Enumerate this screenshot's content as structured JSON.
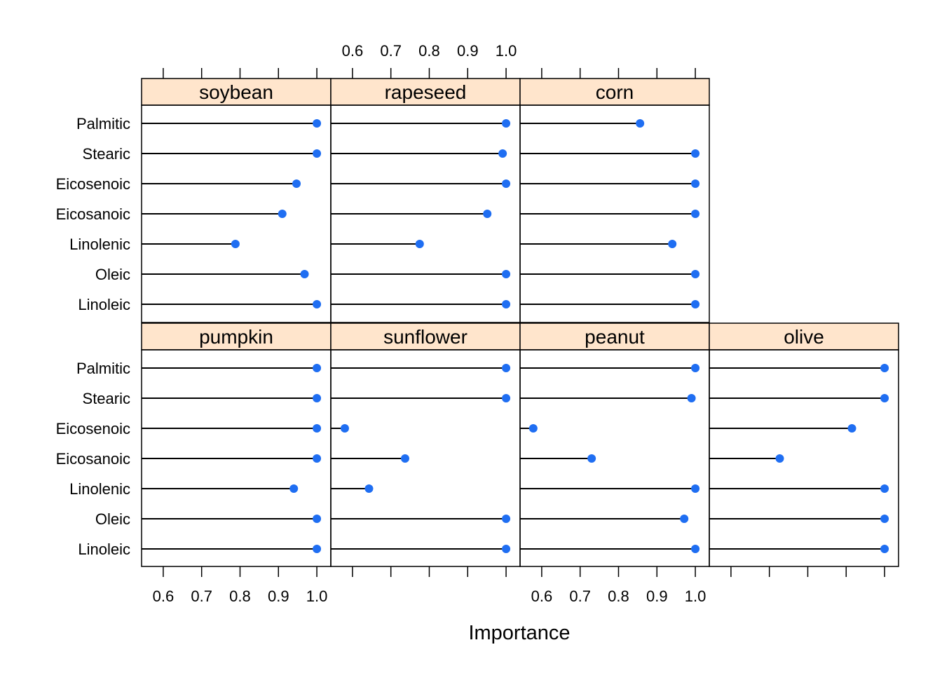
{
  "chart_data": {
    "type": "dotplot",
    "xlabel": "Importance",
    "xlim": [
      0.55,
      1.03
    ],
    "xticks": [
      0.6,
      0.7,
      0.8,
      0.9,
      1.0
    ],
    "xtick_labels": [
      "0.6",
      "0.7",
      "0.8",
      "0.9",
      "1.0"
    ],
    "grid": false,
    "layout": "4 columns x 2 rows",
    "strip_color": "#FFE5CC",
    "point_color": "#1F6EF2",
    "categories": [
      "Palmitic",
      "Stearic",
      "Eicosenoic",
      "Eicosanoic",
      "Linolenic",
      "Oleic",
      "Linoleic"
    ],
    "panels": [
      {
        "name": "soybean",
        "values": [
          1.0,
          1.0,
          0.947,
          0.91,
          0.788,
          0.968,
          1.0
        ]
      },
      {
        "name": "rapeseed",
        "values": [
          1.0,
          0.991,
          1.0,
          0.951,
          0.775,
          1.0,
          1.0
        ]
      },
      {
        "name": "corn",
        "values": [
          0.856,
          1.0,
          1.0,
          1.0,
          0.94,
          1.0,
          1.0
        ]
      },
      {
        "name": "pumpkin",
        "values": [
          1.0,
          1.0,
          1.0,
          1.0,
          0.94,
          1.0,
          1.0
        ]
      },
      {
        "name": "sunflower",
        "values": [
          1.0,
          1.0,
          0.58,
          0.737,
          0.643,
          1.0,
          1.0
        ]
      },
      {
        "name": "peanut",
        "values": [
          1.0,
          0.99,
          0.578,
          0.73,
          1.0,
          0.971,
          1.0
        ]
      },
      {
        "name": "olive",
        "values": [
          1.0,
          1.0,
          0.915,
          0.727,
          1.0,
          1.0,
          1.0
        ]
      }
    ]
  }
}
